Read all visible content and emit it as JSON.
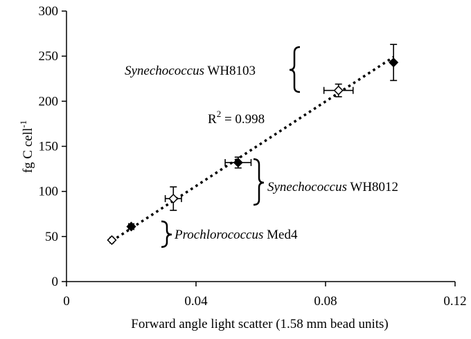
{
  "chart_data": {
    "type": "scatter",
    "title": "",
    "xlabel": "Forward angle light scatter (1.58 mm bead units)",
    "ylabel": {
      "main": "fg C cell",
      "sup": "-1"
    },
    "xlim": [
      0,
      0.12
    ],
    "ylim": [
      0,
      300
    ],
    "x_ticks": [
      0,
      0.04,
      0.08,
      0.12
    ],
    "x_tick_labels": [
      "0",
      "0.04",
      "0.08",
      "0.12"
    ],
    "y_ticks": [
      0,
      50,
      100,
      150,
      200,
      250,
      300
    ],
    "y_tick_labels": [
      "0",
      "50",
      "100",
      "150",
      "200",
      "250",
      "300"
    ],
    "grid": false,
    "legend": "none",
    "marker_colors": {
      "filled": "#000000",
      "open": "#ffffff"
    },
    "points": [
      {
        "x": 0.014,
        "y": 46,
        "xerr": 0.0005,
        "yerr": 1,
        "marker": "open"
      },
      {
        "x": 0.02,
        "y": 61,
        "xerr": 0.0008,
        "yerr": 1,
        "marker": "filled"
      },
      {
        "x": 0.033,
        "y": 92,
        "xerr": 0.0025,
        "yerr": 13,
        "marker": "open"
      },
      {
        "x": 0.053,
        "y": 132,
        "xerr": 0.004,
        "yerr": 6,
        "marker": "filled"
      },
      {
        "x": 0.084,
        "y": 212,
        "xerr": 0.0045,
        "yerr": 7,
        "marker": "open"
      },
      {
        "x": 0.101,
        "y": 243,
        "xerr": 0.0002,
        "yerr": 20,
        "marker": "filled"
      }
    ],
    "trendline": {
      "x": [
        0.014,
        0.101
      ],
      "y": [
        45,
        249
      ],
      "style": "dotted"
    },
    "annotations": {
      "r2": {
        "prefix": "R",
        "sup": "2",
        "suffix": " = 0.998"
      },
      "wh8103": {
        "italic": "Synechococcus",
        "normal": " WH8103"
      },
      "wh8012": {
        "italic": "Synechococcus",
        "normal": " WH8012"
      },
      "med4": {
        "italic": "Prochlorococcus",
        "normal": " Med4"
      }
    }
  }
}
